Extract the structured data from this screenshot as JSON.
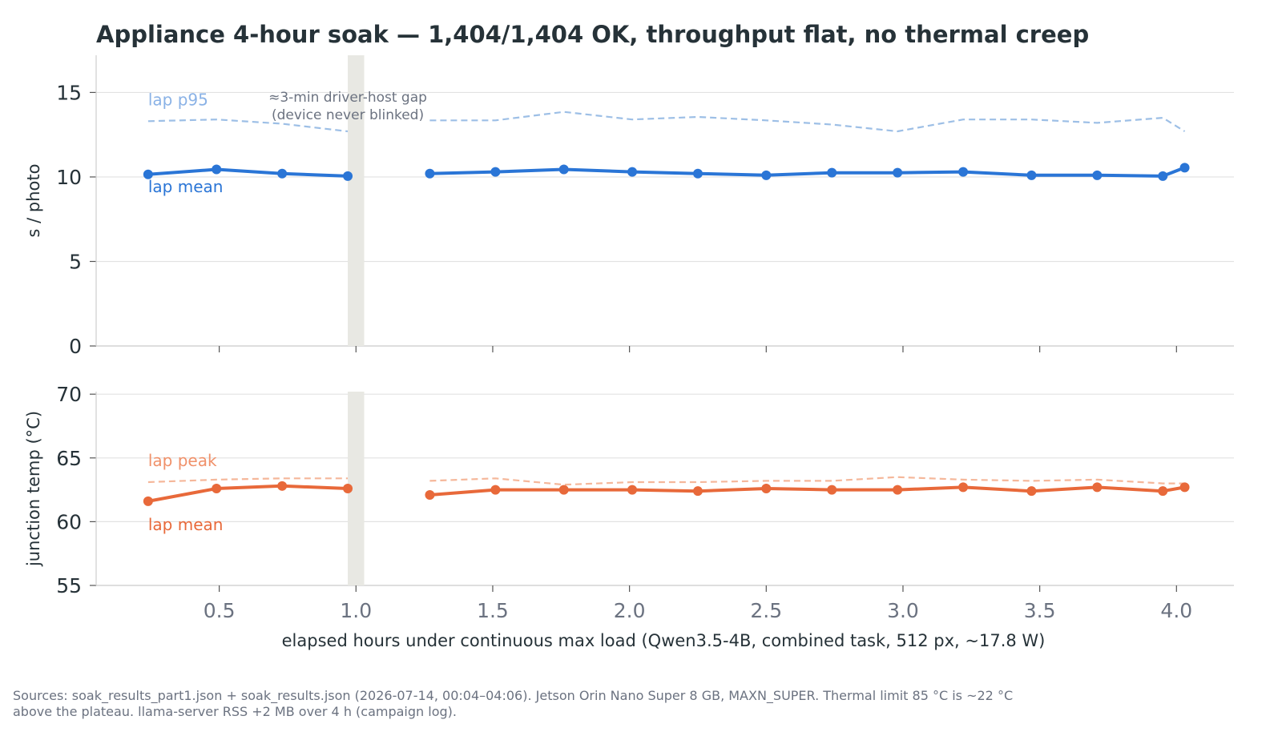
{
  "chart_data": {
    "title": "Appliance 4-hour soak — 1,404/1,404 OK, throughput flat, no thermal creep",
    "xlabel": "elapsed hours under continuous max load (Qwen3.5-4B, combined task, 512 px, ~17.8 W)",
    "x_ticks": [
      "0.5",
      "1.0",
      "1.5",
      "2.0",
      "2.5",
      "3.0",
      "3.5",
      "4.0"
    ],
    "footer": [
      "Sources: soak_results_part1.json + soak_results.json (2026-07-14, 00:04–04:06). Jetson Orin Nano Super 8 GB, MAXN_SUPER. Thermal limit 85 °C is ~22 °C",
      "above the plateau. llama-server RSS +2 MB over 4 h (campaign log)."
    ],
    "gap": {
      "x_range": [
        0.97,
        1.03
      ],
      "annotation": [
        "≈3-min driver-host gap",
        "(device never blinked)"
      ]
    },
    "panels": [
      {
        "type": "line",
        "ylabel": "s / photo",
        "ylim": [
          0,
          17.2
        ],
        "y_ticks": [
          0,
          5,
          10,
          15
        ],
        "grid": true,
        "series": [
          {
            "name": "lap p95",
            "style": "dashed",
            "color": "#9dbfe6",
            "label_color": "#8ab2e6",
            "segments": [
              {
                "x": [
                  0.24,
                  0.49,
                  0.73,
                  0.97
                ],
                "y": [
                  13.3,
                  13.4,
                  13.15,
                  12.7
                ]
              },
              {
                "x": [
                  1.27,
                  1.51,
                  1.76,
                  2.01,
                  2.25,
                  2.5,
                  2.74,
                  2.98,
                  3.22,
                  3.47,
                  3.71,
                  3.95,
                  4.03
                ],
                "y": [
                  13.35,
                  13.35,
                  13.85,
                  13.4,
                  13.55,
                  13.35,
                  13.1,
                  12.7,
                  13.4,
                  13.4,
                  13.2,
                  13.5,
                  12.7
                ]
              }
            ]
          },
          {
            "name": "lap mean",
            "style": "solid",
            "markers": true,
            "color": "#2a75d6",
            "label_color": "#2a75d6",
            "segments": [
              {
                "x": [
                  0.24,
                  0.49,
                  0.73,
                  0.97
                ],
                "y": [
                  10.15,
                  10.45,
                  10.2,
                  10.05
                ]
              },
              {
                "x": [
                  1.27,
                  1.51,
                  1.76,
                  2.01,
                  2.25,
                  2.5,
                  2.74,
                  2.98,
                  3.22,
                  3.47,
                  3.71,
                  3.95,
                  4.03
                ],
                "y": [
                  10.2,
                  10.3,
                  10.45,
                  10.3,
                  10.2,
                  10.1,
                  10.25,
                  10.25,
                  10.3,
                  10.1,
                  10.1,
                  10.05,
                  10.55
                ]
              }
            ]
          }
        ]
      },
      {
        "type": "line",
        "ylabel": "junction temp (°C)",
        "ylim": [
          55,
          70.2
        ],
        "y_ticks": [
          55,
          60,
          65,
          70
        ],
        "grid": true,
        "series": [
          {
            "name": "lap peak",
            "style": "dashed",
            "color": "#f5b79a",
            "label_color": "#f0916a",
            "segments": [
              {
                "x": [
                  0.24,
                  0.49,
                  0.73,
                  0.97
                ],
                "y": [
                  63.1,
                  63.3,
                  63.4,
                  63.4
                ]
              },
              {
                "x": [
                  1.27,
                  1.51,
                  1.76,
                  2.01,
                  2.25,
                  2.5,
                  2.74,
                  2.98,
                  3.22,
                  3.47,
                  3.71,
                  3.95,
                  4.03
                ],
                "y": [
                  63.2,
                  63.4,
                  62.9,
                  63.1,
                  63.1,
                  63.2,
                  63.2,
                  63.5,
                  63.3,
                  63.2,
                  63.3,
                  63.0,
                  63.0
                ]
              }
            ]
          },
          {
            "name": "lap mean",
            "style": "solid",
            "markers": true,
            "color": "#e8693a",
            "label_color": "#e8693a",
            "segments": [
              {
                "x": [
                  0.24,
                  0.49,
                  0.73,
                  0.97
                ],
                "y": [
                  61.6,
                  62.6,
                  62.8,
                  62.6
                ]
              },
              {
                "x": [
                  1.27,
                  1.51,
                  1.76,
                  2.01,
                  2.25,
                  2.5,
                  2.74,
                  2.98,
                  3.22,
                  3.47,
                  3.71,
                  3.95,
                  4.03
                ],
                "y": [
                  62.1,
                  62.5,
                  62.5,
                  62.5,
                  62.4,
                  62.6,
                  62.5,
                  62.5,
                  62.7,
                  62.4,
                  62.7,
                  62.4,
                  62.7
                ]
              }
            ]
          }
        ]
      }
    ]
  }
}
